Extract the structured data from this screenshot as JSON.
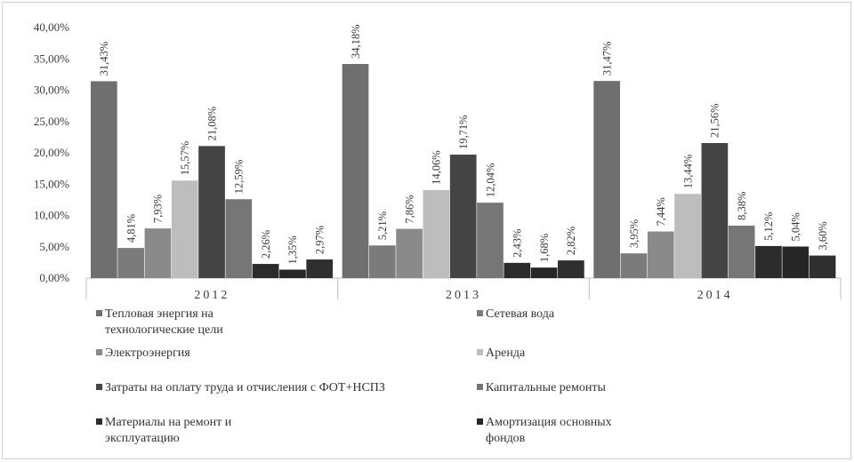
{
  "chart_data": {
    "type": "bar",
    "categories": [
      "2012",
      "2013",
      "2014"
    ],
    "ylim": [
      0,
      40
    ],
    "yticks": [
      "0,00%",
      "5,00%",
      "10,00%",
      "15,00%",
      "20,00%",
      "25,00%",
      "30,00%",
      "35,00%",
      "40,00%"
    ],
    "grid": false,
    "legend_position": "bottom",
    "series": [
      {
        "name": "Тепловая энергия на технологические цели",
        "values": [
          31.43,
          34.18,
          31.47
        ],
        "labels": [
          "31,43%",
          "34,18%",
          "31,47%"
        ],
        "color": "#6f6f6f"
      },
      {
        "name": "Сетевая вода",
        "values": [
          4.81,
          5.21,
          3.95
        ],
        "labels": [
          "4,81%",
          "5,21%",
          "3,95%"
        ],
        "color": "#7b7b7b"
      },
      {
        "name": "Электроэнергия",
        "values": [
          7.93,
          7.86,
          7.44
        ],
        "labels": [
          "7,93%",
          "7,86%",
          "7,44%"
        ],
        "color": "#8a8a8a"
      },
      {
        "name": "Аренда",
        "values": [
          15.57,
          14.06,
          13.44
        ],
        "labels": [
          "15,57%",
          "14,06%",
          "13,44%"
        ],
        "color": "#bdbdbd"
      },
      {
        "name": "Затраты на оплату труда и отчисления с ФОТ+НСПЗ",
        "values": [
          21.08,
          19.71,
          21.56
        ],
        "labels": [
          "21,08%",
          "19,71%",
          "21,56%"
        ],
        "color": "#444444"
      },
      {
        "name": "Капитальные ремонты",
        "values": [
          12.59,
          12.04,
          8.38
        ],
        "labels": [
          "12,59%",
          "12,04%",
          "8,38%"
        ],
        "color": "#767676"
      },
      {
        "name": "Материалы на ремонт и эксплуатацию",
        "values": [
          2.26,
          2.43,
          5.12
        ],
        "labels": [
          "2,26%",
          "2,43%",
          "5,12%"
        ],
        "color": "#2b2b2b"
      },
      {
        "name": "Амортизация основных фондов",
        "values": [
          1.35,
          1.68,
          5.04
        ],
        "labels": [
          "1,35%",
          "1,68%",
          "5,04%"
        ],
        "color": "#262626"
      },
      {
        "name": "",
        "values": [
          2.97,
          2.82,
          3.6
        ],
        "labels": [
          "2,97%",
          "2,82%",
          "3,60%"
        ],
        "color": "#2f2f2f"
      }
    ],
    "legend": [
      {
        "lines": [
          "Тепловая энергия на",
          "технологические цели"
        ],
        "color": "#6f6f6f"
      },
      {
        "lines": [
          "Сетевая вода"
        ],
        "color": "#7b7b7b"
      },
      {
        "lines": [
          "Электроэнергия"
        ],
        "color": "#8a8a8a"
      },
      {
        "lines": [
          "Аренда"
        ],
        "color": "#bdbdbd"
      },
      {
        "lines": [
          "Затраты на оплату труда и отчисления с ФОТ+НСПЗ"
        ],
        "color": "#444444"
      },
      {
        "lines": [
          "Капитальные ремонты"
        ],
        "color": "#767676"
      },
      {
        "lines": [
          "Материалы на ремонт и",
          "эксплуатацию"
        ],
        "color": "#2b2b2b"
      },
      {
        "lines": [
          "Амортизация основных",
          "фондов"
        ],
        "color": "#262626"
      }
    ]
  }
}
